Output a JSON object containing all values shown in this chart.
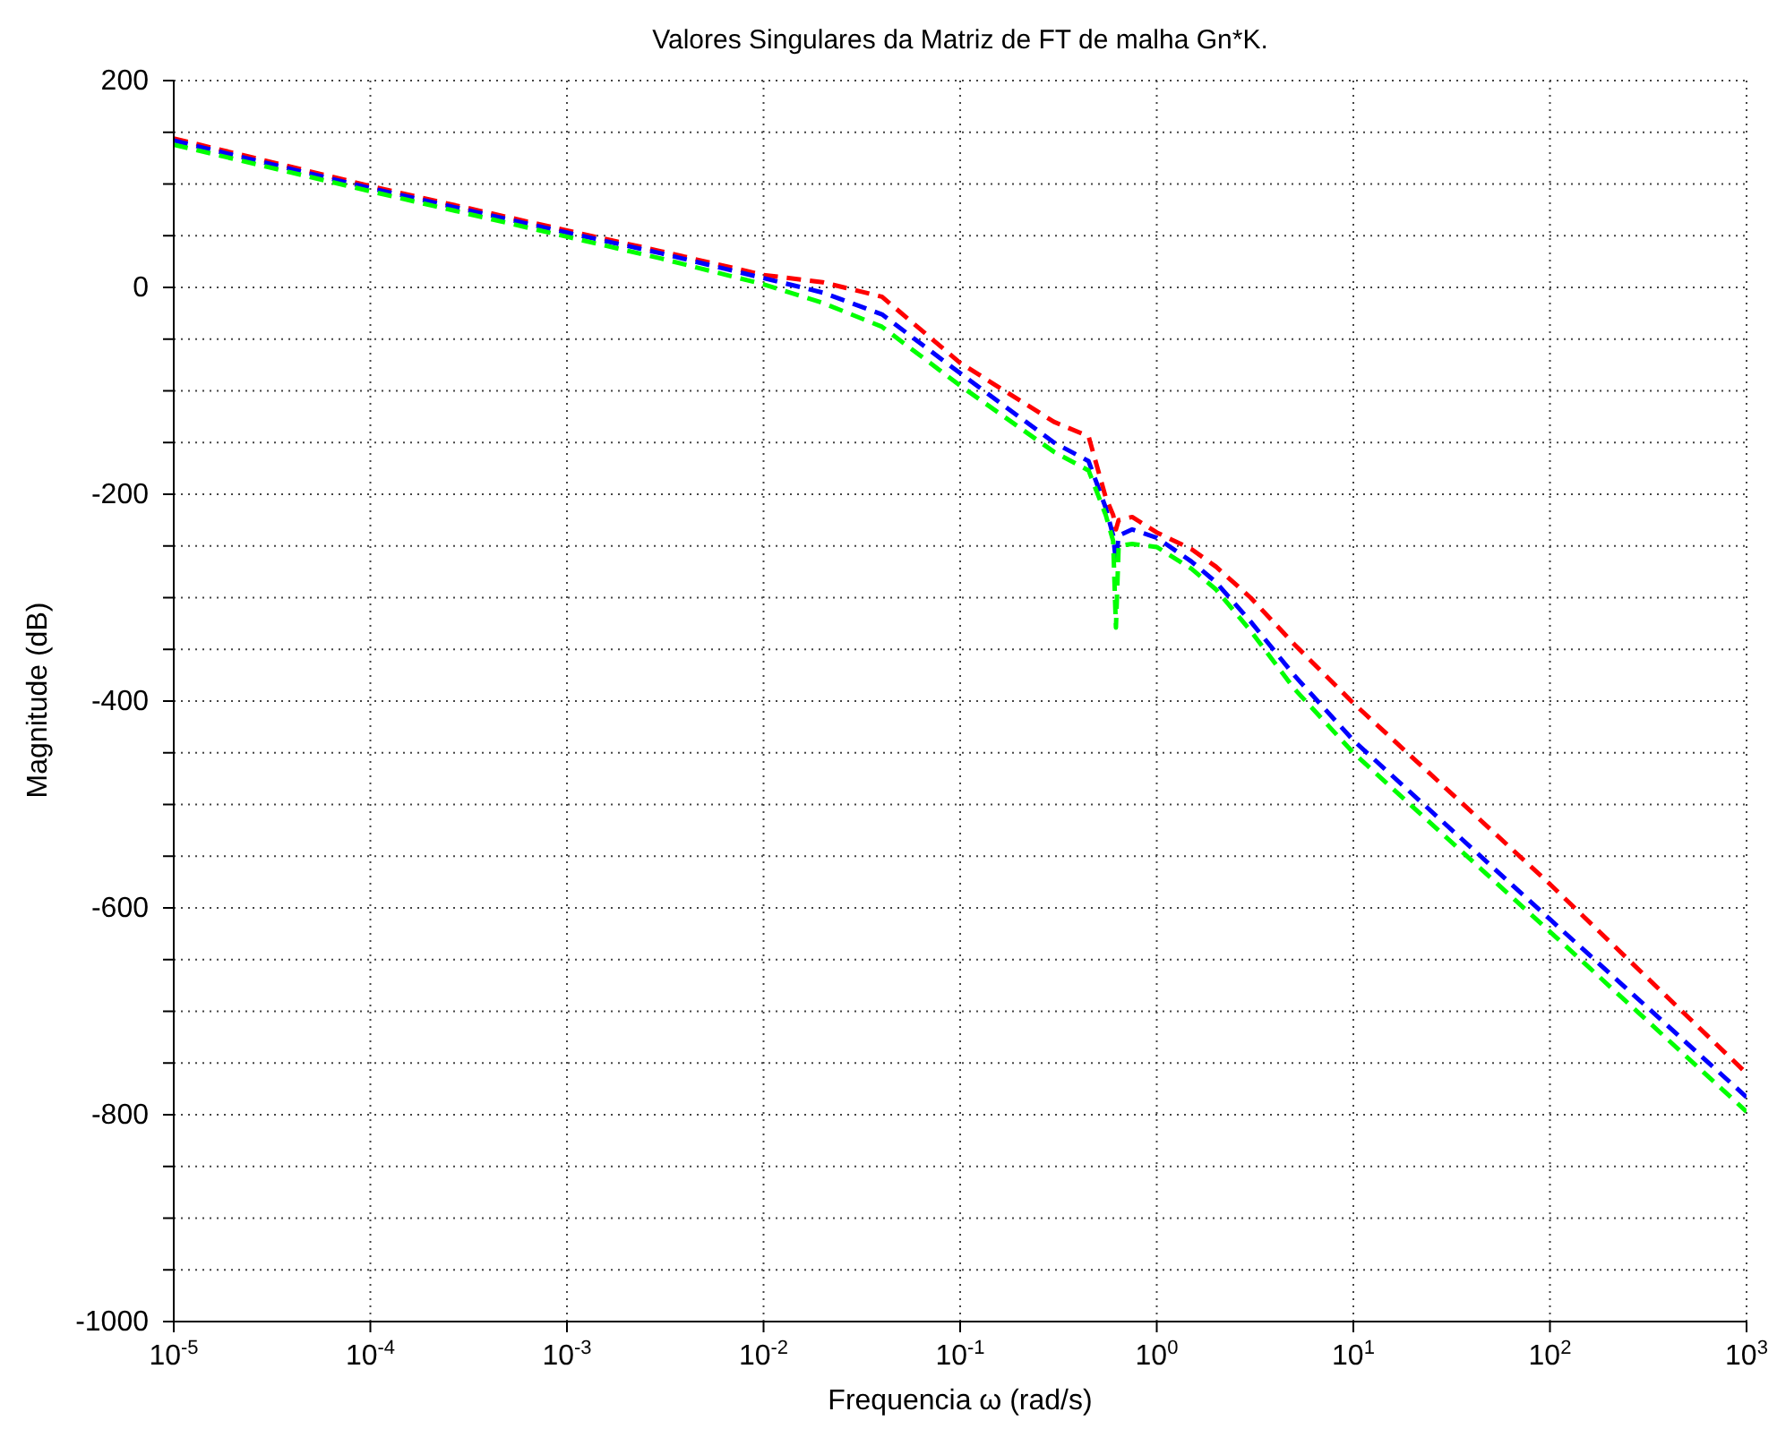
{
  "chart_data": {
    "type": "line",
    "title": "Valores Singulares da Matriz de FT de malha Gn*K.",
    "xlabel": "Frequencia ω (rad/s)",
    "ylabel": "Magnitude (dB)",
    "log": "x",
    "grid": true,
    "line_style": "dashed",
    "marker": "none",
    "x": [
      1e-05,
      0.0001,
      0.001,
      0.003,
      0.01,
      0.02,
      0.04,
      0.1,
      0.3,
      0.45,
      0.55,
      0.6,
      0.62,
      0.64,
      0.75,
      1,
      1.5,
      2,
      3,
      5,
      10,
      100,
      1000
    ],
    "series": [
      {
        "color": "#ff0000",
        "values": [
          144,
          98,
          55,
          35,
          12,
          5,
          -9,
          -73,
          -130,
          -144,
          -203,
          -220,
          -234,
          -225,
          -222,
          -237,
          -253,
          -270,
          -300,
          -345,
          -402,
          -577,
          -760
        ]
      },
      {
        "color": "#0000ff",
        "values": [
          142,
          96,
          53,
          33,
          9,
          -5,
          -26,
          -83,
          -150,
          -168,
          -213,
          -240,
          -265,
          -240,
          -234,
          -242,
          -265,
          -285,
          -323,
          -375,
          -438,
          -611,
          -783
        ]
      },
      {
        "color": "#00ff00",
        "values": [
          138,
          93,
          49,
          28,
          3,
          -15,
          -38,
          -95,
          -159,
          -177,
          -220,
          -245,
          -329,
          -250,
          -248,
          -251,
          -272,
          -292,
          -332,
          -388,
          -450,
          -623,
          -797
        ]
      }
    ],
    "xlim": [
      1e-05,
      1000
    ],
    "xticks": [
      {
        "value": 1e-05,
        "label": "10$^{-5}$"
      },
      {
        "value": 0.0001,
        "label": "10$^{-4}$"
      },
      {
        "value": 0.001,
        "label": "10$^{-3}$"
      },
      {
        "value": 0.01,
        "label": "10$^{-2}$"
      },
      {
        "value": 0.1,
        "label": "10$^{-1}$"
      },
      {
        "value": 1,
        "label": "10$^{0}$"
      },
      {
        "value": 10,
        "label": "10$^{1}$"
      },
      {
        "value": 100,
        "label": "10$^{2}$"
      },
      {
        "value": 1000,
        "label": "10$^{3}$"
      }
    ],
    "ylim": [
      -1000,
      200
    ],
    "yticks": [
      -1000,
      {
        "value": -950,
        "label": null
      },
      {
        "value": -900,
        "label": null
      },
      {
        "value": -850,
        "label": null
      },
      -800,
      {
        "value": -750,
        "label": null
      },
      {
        "value": -700,
        "label": null
      },
      {
        "value": -650,
        "label": null
      },
      -600,
      {
        "value": -550,
        "label": null
      },
      {
        "value": -500,
        "label": null
      },
      {
        "value": -450,
        "label": null
      },
      -400,
      {
        "value": -350,
        "label": null
      },
      {
        "value": -300,
        "label": null
      },
      {
        "value": -250,
        "label": null
      },
      -200,
      {
        "value": -150,
        "label": null
      },
      {
        "value": -100,
        "label": null
      },
      {
        "value": -50,
        "label": null
      },
      0,
      {
        "value": 50,
        "label": null
      },
      {
        "value": 100,
        "label": null
      },
      {
        "value": 150,
        "label": null
      },
      200
    ]
  }
}
